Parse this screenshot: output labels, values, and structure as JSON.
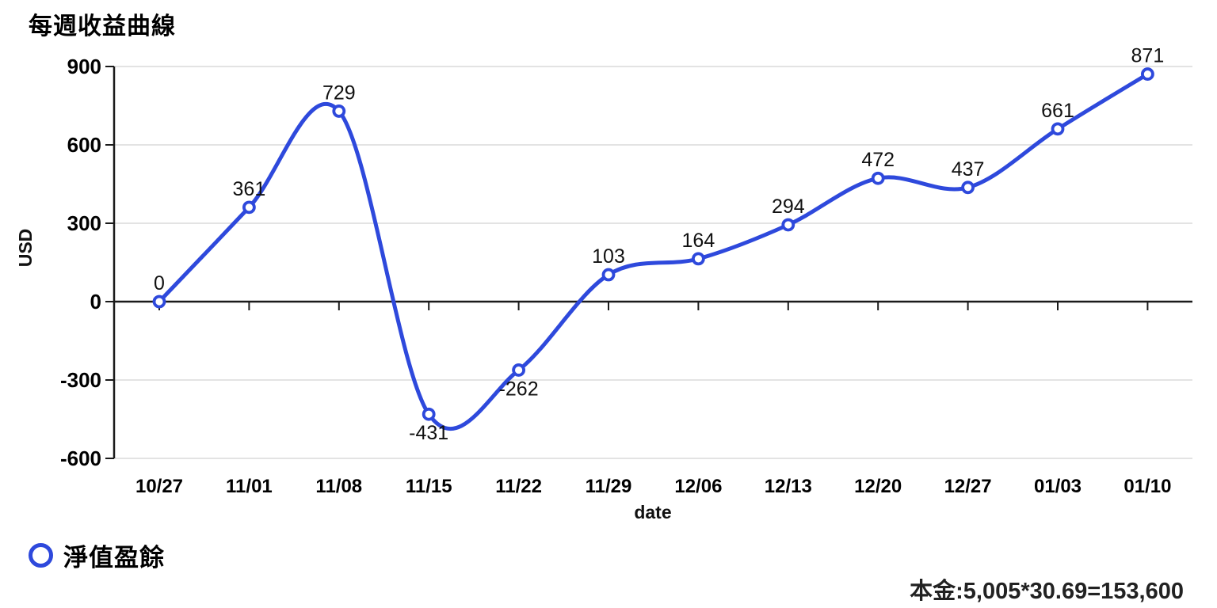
{
  "chart_data": {
    "type": "line",
    "title": "每週收益曲線",
    "xlabel": "date",
    "ylabel": "USD",
    "categories": [
      "10/27",
      "11/01",
      "11/08",
      "11/15",
      "11/22",
      "11/29",
      "12/06",
      "12/13",
      "12/20",
      "12/27",
      "01/03",
      "01/10"
    ],
    "series": [
      {
        "name": "淨值盈餘",
        "values": [
          0,
          361,
          729,
          -431,
          -262,
          103,
          164,
          294,
          472,
          437,
          661,
          871
        ]
      }
    ],
    "ylim": [
      -600,
      900
    ],
    "yticks": [
      900,
      600,
      300,
      0,
      -300,
      -600
    ],
    "grid": true,
    "legend_position": "bottom-left",
    "curve": "smooth-spline-with-overshoot",
    "marker": "open-circle",
    "colors": {
      "line": "#2e49dc",
      "marker_fill": "#ffffff",
      "grid": "#e3e3e3",
      "axis": "#1a1a1a",
      "text": "#000000"
    }
  },
  "footnote": {
    "text": "本金:5,005*30.69=153,600"
  }
}
